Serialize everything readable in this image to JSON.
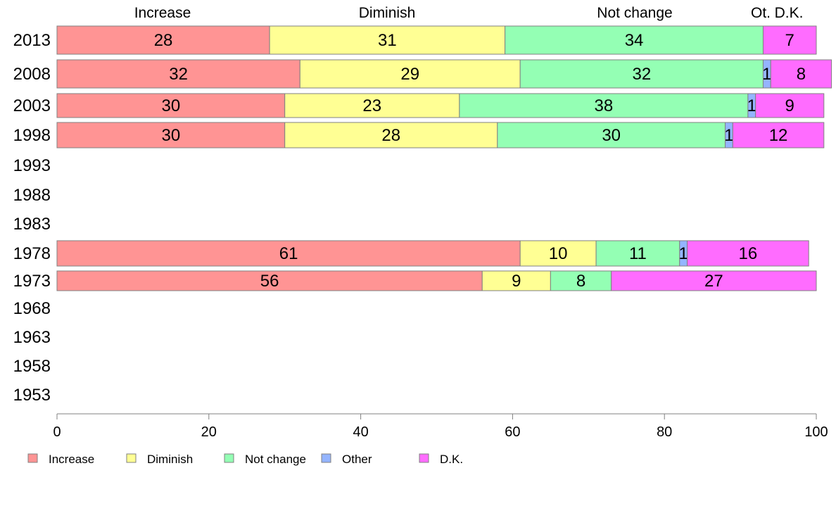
{
  "chart_data": {
    "type": "bar",
    "orientation": "horizontal",
    "stacked": true,
    "categories": [
      "2013",
      "2008",
      "2003",
      "1998",
      "1993",
      "1988",
      "1983",
      "1978",
      "1973",
      "1968",
      "1963",
      "1958",
      "1953"
    ],
    "series": [
      {
        "name": "Increase",
        "color": "#ff9494",
        "values": [
          28,
          32,
          30,
          30,
          null,
          null,
          null,
          61,
          56,
          null,
          null,
          null,
          null
        ]
      },
      {
        "name": "Diminish",
        "color": "#ffff94",
        "values": [
          31,
          29,
          23,
          28,
          null,
          null,
          null,
          10,
          9,
          null,
          null,
          null,
          null
        ]
      },
      {
        "name": "Not change",
        "color": "#94ffb4",
        "values": [
          34,
          32,
          38,
          30,
          null,
          null,
          null,
          11,
          8,
          null,
          null,
          null,
          null
        ]
      },
      {
        "name": "Other",
        "color": "#94b4ff",
        "values": [
          0,
          1,
          1,
          1,
          null,
          null,
          null,
          1,
          0,
          null,
          null,
          null,
          null
        ]
      },
      {
        "name": "D.K.",
        "color": "#ff6cff",
        "values": [
          7,
          8,
          9,
          12,
          null,
          null,
          null,
          16,
          27,
          null,
          null,
          null,
          null
        ]
      }
    ],
    "top_labels": [
      "Increase",
      "Diminish",
      "Not change",
      "Ot.",
      "D.K."
    ],
    "xlim": [
      0,
      100
    ],
    "xticks": [
      0,
      20,
      40,
      60,
      80,
      100
    ],
    "grid": false,
    "legend_position": "bottom-left"
  }
}
